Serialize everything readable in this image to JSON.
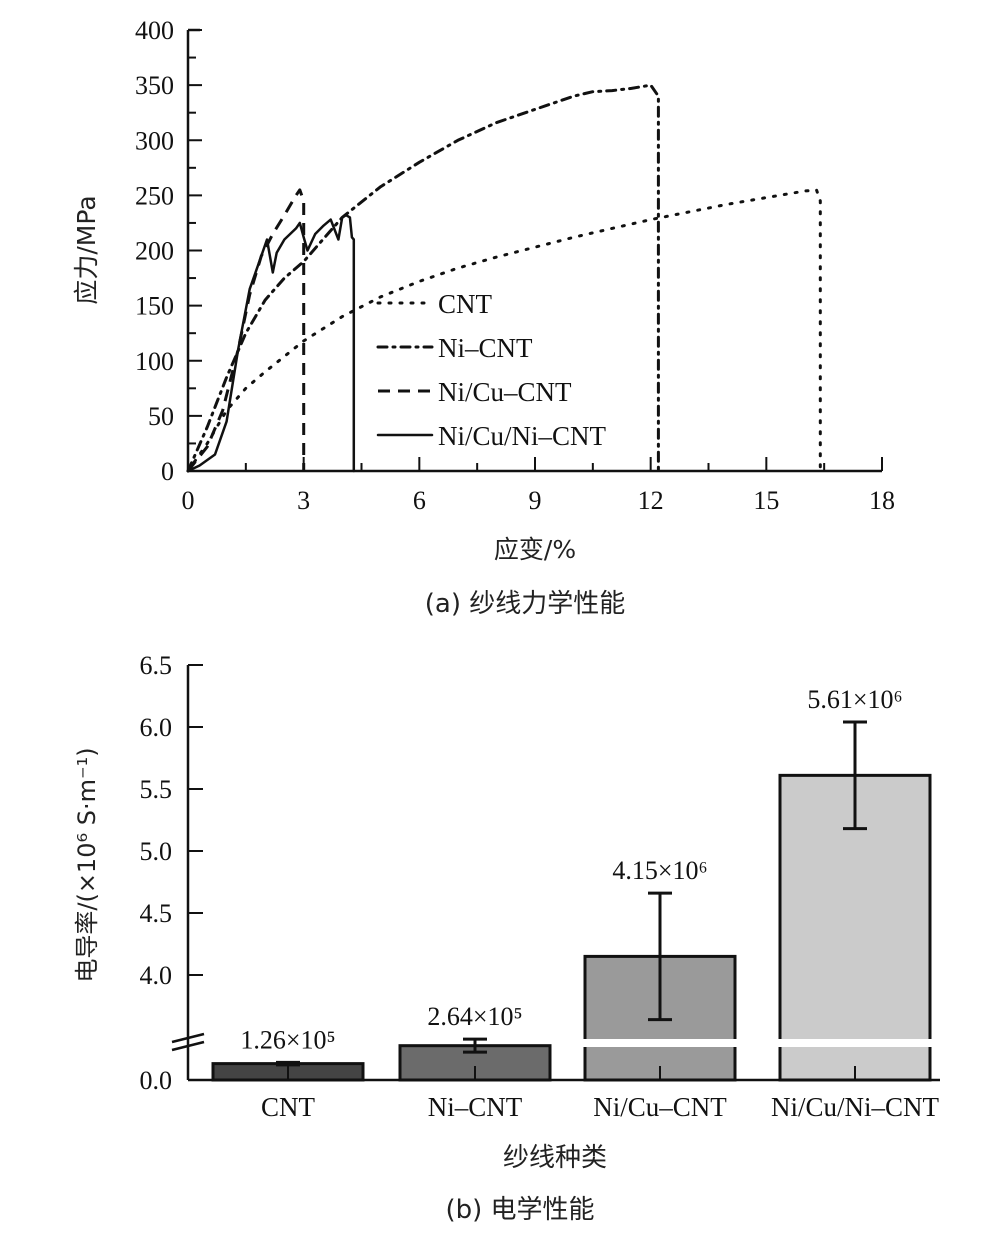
{
  "chart_data": [
    {
      "type": "line",
      "panel": "a",
      "caption": "(a) 纱线力学性能",
      "xlabel": "应变/%",
      "ylabel": "应力/MPa",
      "xlim": [
        0,
        18
      ],
      "ylim": [
        0,
        400
      ],
      "xticks": [
        "0",
        "3",
        "6",
        "9",
        "12",
        "15",
        "18"
      ],
      "yticks": [
        "0",
        "50",
        "100",
        "150",
        "200",
        "250",
        "300",
        "350",
        "400"
      ],
      "grid": false,
      "legend_position": "center-bottom",
      "series": [
        {
          "name": "CNT",
          "style": "dotted",
          "x": [
            0,
            0.5,
            1.0,
            1.5,
            2.0,
            3.0,
            4.0,
            5.0,
            6.0,
            7.0,
            8.0,
            9.0,
            10.0,
            11.0,
            12.0,
            13.0,
            14.0,
            15.0,
            16.0,
            16.3,
            16.4,
            16.4
          ],
          "y": [
            0,
            25,
            55,
            75,
            90,
            118,
            140,
            158,
            172,
            184,
            194,
            203,
            212,
            220,
            228,
            235,
            242,
            248,
            254,
            255,
            245,
            0
          ]
        },
        {
          "name": "Ni–CNT",
          "style": "dash-dot",
          "x": [
            0,
            0.5,
            1.0,
            1.5,
            2.0,
            2.5,
            3.0,
            3.5,
            4.0,
            5.0,
            6.0,
            7.0,
            8.0,
            9.0,
            10.0,
            10.5,
            11.0,
            11.5,
            12.0,
            12.2,
            12.2
          ],
          "y": [
            0,
            40,
            85,
            125,
            155,
            175,
            190,
            210,
            230,
            258,
            280,
            300,
            316,
            328,
            340,
            344,
            345,
            347,
            350,
            340,
            0
          ]
        },
        {
          "name": "Ni/Cu–CNT",
          "style": "dashed",
          "x": [
            0,
            0.5,
            0.9,
            1.3,
            1.6,
            1.9,
            2.2,
            2.5,
            2.8,
            2.9,
            3.0,
            3.0
          ],
          "y": [
            0,
            22,
            55,
            110,
            160,
            195,
            215,
            232,
            250,
            255,
            245,
            0
          ]
        },
        {
          "name": "Ni/Cu/Ni–CNT",
          "style": "solid",
          "x": [
            0,
            0.3,
            0.7,
            1.0,
            1.3,
            1.6,
            1.9,
            2.05,
            2.2,
            2.3,
            2.5,
            2.8,
            2.9,
            3.0,
            3.1,
            3.3,
            3.5,
            3.7,
            3.9,
            4.0,
            4.1,
            4.2,
            4.25,
            4.3,
            4.3
          ],
          "y": [
            0,
            5,
            15,
            45,
            110,
            165,
            195,
            210,
            180,
            198,
            210,
            220,
            225,
            212,
            200,
            215,
            222,
            228,
            210,
            230,
            232,
            230,
            212,
            210,
            0
          ]
        }
      ]
    },
    {
      "type": "bar",
      "panel": "b",
      "caption": "(b) 电学性能",
      "xlabel": "纱线种类",
      "ylabel": "电导率/(×10⁶ S·m⁻¹)",
      "categories": [
        "CNT",
        "Ni–CNT",
        "Ni/Cu–CNT",
        "Ni/Cu/Ni–CNT"
      ],
      "values": [
        0.126,
        0.264,
        4.15,
        5.61
      ],
      "error": [
        0.01,
        0.05,
        0.51,
        0.43
      ],
      "data_labels": [
        "1.26×10⁵",
        "2.64×10⁵",
        "4.15×10⁶",
        "5.61×10⁶"
      ],
      "colors": [
        "#444444",
        "#6b6b6b",
        "#9a9a9a",
        "#cbcbcb"
      ],
      "yticks": [
        "0.0",
        "4.0",
        "4.5",
        "5.0",
        "5.5",
        "6.0",
        "6.5"
      ],
      "axis_break": true,
      "ylim_upper": [
        3.5,
        6.5
      ],
      "grid": false
    }
  ]
}
